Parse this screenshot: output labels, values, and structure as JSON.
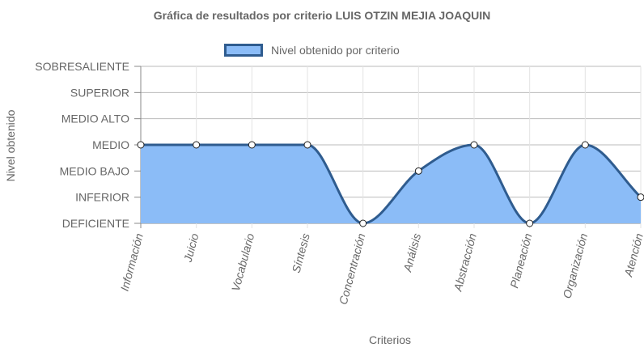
{
  "chart_data": {
    "type": "line",
    "title": "Gráfica de resultados por criterio LUIS OTZIN MEJIA JOAQUIN",
    "xlabel": "Criterios",
    "ylabel": "Nivel obtenido",
    "levels": [
      "DEFICIENTE",
      "INFERIOR",
      "MEDIO BAJO",
      "MEDIO",
      "MEDIO ALTO",
      "SUPERIOR",
      "SOBRESALIENTE"
    ],
    "ylim": [
      0,
      6
    ],
    "categories": [
      "Información",
      "Juicio",
      "Vocabulario",
      "Síntesis",
      "Concentración",
      "Análisis",
      "Abstracción",
      "Planeación",
      "Organización",
      "Atención"
    ],
    "series": [
      {
        "name": "Nivel obtenido por criterio",
        "values": [
          3,
          3,
          3,
          3,
          0,
          2,
          3,
          0,
          3,
          1
        ]
      }
    ],
    "fill": true,
    "smooth": true,
    "grid": true,
    "legend_position": "top",
    "colors": {
      "line": "#2f5c8f",
      "fill": "#8bbcf7",
      "grid": "#e3e3e3",
      "axis": "#888888",
      "text": "#666666"
    }
  }
}
